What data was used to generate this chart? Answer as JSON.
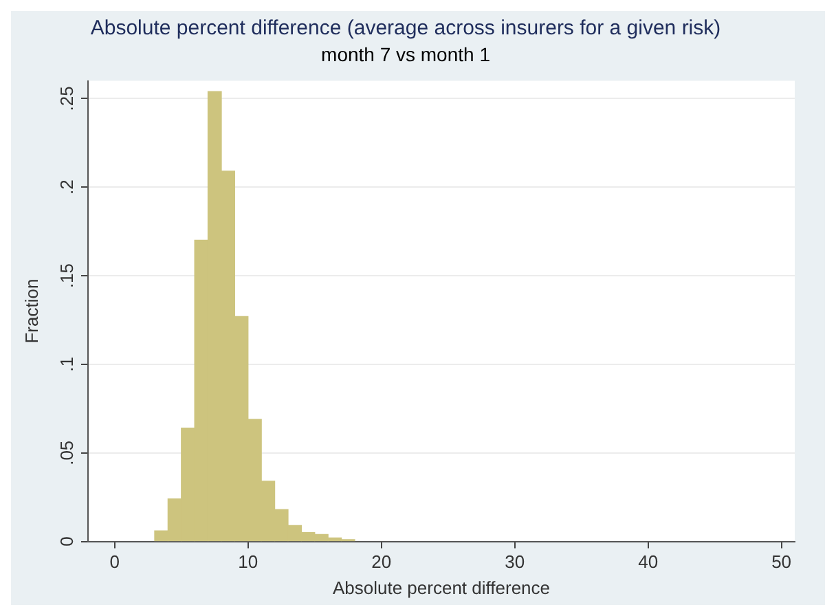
{
  "chart_data": {
    "type": "histogram",
    "title": "Absolute percent difference (average across insurers for a given risk)",
    "subtitle": "month 7 vs month 1",
    "xlabel": "Absolute percent difference",
    "ylabel": "Fraction",
    "bins": [
      3,
      4,
      5,
      6,
      7,
      8,
      9,
      10,
      11,
      12,
      13,
      14,
      15,
      16,
      17,
      18
    ],
    "values": [
      0.006,
      0.024,
      0.064,
      0.17,
      0.254,
      0.209,
      0.127,
      0.069,
      0.034,
      0.018,
      0.009,
      0.005,
      0.004,
      0.002,
      0.001
    ],
    "color": "#cdc47e",
    "xlim": [
      -2,
      51
    ],
    "xticks": [
      0,
      10,
      20,
      30,
      40,
      50
    ],
    "ylim": [
      0,
      0.26
    ],
    "yticks": [
      {
        "value": 0,
        "label": "0"
      },
      {
        "value": 0.05,
        "label": ".05"
      },
      {
        "value": 0.1,
        "label": ".1"
      },
      {
        "value": 0.15,
        "label": ".15"
      },
      {
        "value": 0.2,
        "label": ".2"
      },
      {
        "value": 0.25,
        "label": ".25"
      }
    ],
    "grid": "y"
  }
}
